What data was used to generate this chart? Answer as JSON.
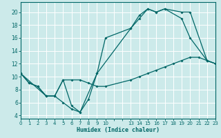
{
  "xlabel": "Humidex (Indice chaleur)",
  "bg_color": "#cceaea",
  "line_color": "#006666",
  "grid_color": "#ffffff",
  "xlim": [
    0,
    23
  ],
  "ylim": [
    3.5,
    21.5
  ],
  "xtick_positions": [
    0,
    1,
    2,
    3,
    4,
    5,
    6,
    7,
    8,
    9,
    10,
    11,
    12,
    13,
    14,
    15,
    16,
    17,
    18,
    19,
    20,
    21,
    22,
    23
  ],
  "xtick_labels": [
    "0",
    "1",
    "2",
    "3",
    "4",
    "5",
    "6",
    "7",
    "8",
    "9",
    "10",
    "",
    "",
    "13",
    "14",
    "15",
    "16",
    "17",
    "18",
    "19",
    "20",
    "21",
    "22",
    "23"
  ],
  "yticks": [
    4,
    6,
    8,
    10,
    12,
    14,
    16,
    18,
    20
  ],
  "line1": {
    "x": [
      0,
      1,
      2,
      3,
      4,
      5,
      6,
      7,
      8,
      9,
      13,
      14,
      15,
      16,
      17,
      19,
      20,
      22,
      23
    ],
    "y": [
      10.5,
      9,
      8.5,
      7,
      7,
      6,
      5,
      4.5,
      6.5,
      10.5,
      17.5,
      19.5,
      20.5,
      20,
      20.5,
      20,
      20,
      12.5,
      12
    ]
  },
  "line2": {
    "x": [
      0,
      1,
      2,
      3,
      4,
      5,
      6,
      7,
      8,
      9,
      10,
      13,
      14,
      15,
      16,
      17,
      18,
      19,
      20,
      21,
      22,
      23
    ],
    "y": [
      10.5,
      9,
      8.5,
      7,
      7,
      9.5,
      9.5,
      9.5,
      9,
      8.5,
      8.5,
      9.5,
      10,
      10.5,
      11,
      11.5,
      12,
      12.5,
      13,
      13,
      12.5,
      12
    ]
  },
  "line3": {
    "x": [
      0,
      3,
      4,
      5,
      6,
      7,
      9,
      10,
      13,
      14,
      15,
      16,
      17,
      19,
      20,
      22,
      23
    ],
    "y": [
      10.5,
      7,
      7,
      9.5,
      5.5,
      4.5,
      10.5,
      16,
      17.5,
      19,
      20.5,
      20,
      20.5,
      19,
      16,
      12.5,
      12
    ]
  }
}
